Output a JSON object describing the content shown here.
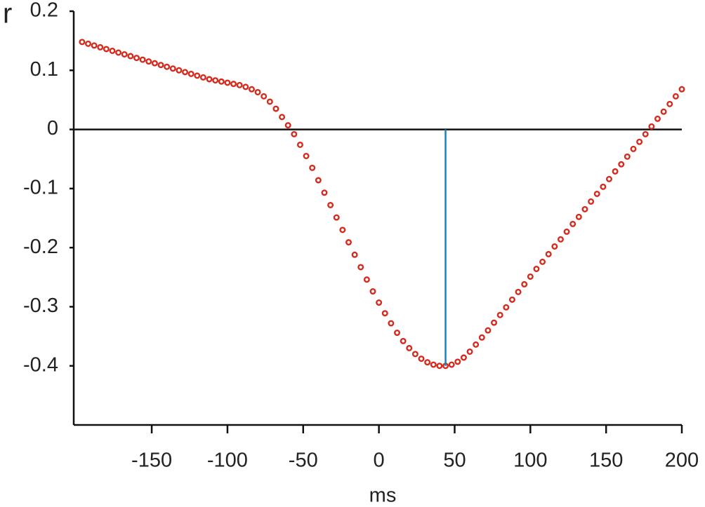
{
  "chart_data": {
    "type": "scatter",
    "y_label": "r",
    "x_label": "ms",
    "xlim": [
      -201.5,
      200
    ],
    "ylim": [
      -0.5,
      0.2
    ],
    "xticks": [
      -150,
      -100,
      -50,
      0,
      50,
      100,
      150,
      200
    ],
    "yticks": [
      -0.4,
      -0.3,
      -0.2,
      -0.1,
      0,
      0.1,
      0.2
    ],
    "zero_line": true,
    "x": [
      -196,
      -192,
      -188,
      -184,
      -180,
      -176,
      -172,
      -168,
      -164,
      -160,
      -156,
      -152,
      -148,
      -144,
      -140,
      -136,
      -132,
      -128,
      -124,
      -120,
      -116,
      -112,
      -108,
      -104,
      -100,
      -96,
      -92,
      -88,
      -84,
      -80,
      -76,
      -72,
      -68,
      -64,
      -60,
      -56,
      -52,
      -48,
      -44,
      -40,
      -36,
      -32,
      -28,
      -24,
      -20,
      -16,
      -12,
      -8,
      -4,
      0,
      4,
      8,
      12,
      16,
      20,
      24,
      28,
      32,
      36,
      40,
      44,
      48,
      52,
      56,
      60,
      64,
      68,
      72,
      76,
      80,
      84,
      88,
      92,
      96,
      100,
      104,
      108,
      112,
      116,
      120,
      124,
      128,
      132,
      136,
      140,
      144,
      148,
      152,
      156,
      160,
      164,
      168,
      172,
      176,
      180,
      184,
      188,
      192,
      196,
      200
    ],
    "series": [
      {
        "color": "#d52b1e",
        "values": [
          0.148,
          0.145,
          0.142,
          0.139,
          0.136,
          0.133,
          0.13,
          0.127,
          0.124,
          0.121,
          0.118,
          0.115,
          0.112,
          0.109,
          0.106,
          0.103,
          0.1,
          0.097,
          0.094,
          0.091,
          0.088,
          0.085,
          0.083,
          0.081,
          0.079,
          0.077,
          0.075,
          0.072,
          0.068,
          0.063,
          0.056,
          0.047,
          0.035,
          0.021,
          0.007,
          -0.008,
          -0.026,
          -0.045,
          -0.065,
          -0.086,
          -0.107,
          -0.128,
          -0.149,
          -0.17,
          -0.191,
          -0.212,
          -0.233,
          -0.254,
          -0.274,
          -0.293,
          -0.311,
          -0.328,
          -0.344,
          -0.358,
          -0.37,
          -0.38,
          -0.388,
          -0.394,
          -0.398,
          -0.4,
          -0.4,
          -0.398,
          -0.393,
          -0.386,
          -0.376,
          -0.364,
          -0.352,
          -0.34,
          -0.327,
          -0.314,
          -0.301,
          -0.288,
          -0.275,
          -0.262,
          -0.249,
          -0.236,
          -0.224,
          -0.211,
          -0.198,
          -0.186,
          -0.173,
          -0.16,
          -0.148,
          -0.135,
          -0.122,
          -0.109,
          -0.097,
          -0.084,
          -0.071,
          -0.059,
          -0.046,
          -0.033,
          -0.021,
          -0.008,
          0.005,
          0.018,
          0.03,
          0.043,
          0.056,
          0.068
        ]
      }
    ],
    "vline": {
      "x": 44,
      "from": 0,
      "to": -0.4,
      "color": "#1a80c4"
    }
  }
}
